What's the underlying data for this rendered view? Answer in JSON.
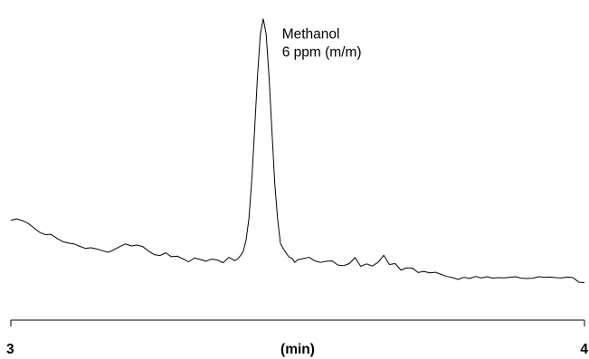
{
  "chart_data": {
    "type": "line",
    "title": "",
    "xlabel": "(min)",
    "ylabel": "",
    "xlim": [
      3,
      4
    ],
    "ylim": [
      0,
      100
    ],
    "x_ticks": [
      {
        "value": 3,
        "label": "3"
      },
      {
        "value": 4,
        "label": "4"
      }
    ],
    "grid": false,
    "legend": "none",
    "y_axis_visible": false,
    "annotation": {
      "lines": [
        "Methanol",
        "6 ppm (m/m)"
      ],
      "anchor_x": 3.438,
      "anchor_y": 95
    },
    "series": [
      {
        "color": "#000000",
        "x": [
          3.0,
          3.01,
          3.02,
          3.03,
          3.04,
          3.05,
          3.06,
          3.07,
          3.08,
          3.09,
          3.1,
          3.11,
          3.12,
          3.13,
          3.14,
          3.15,
          3.16,
          3.17,
          3.18,
          3.19,
          3.2,
          3.21,
          3.22,
          3.23,
          3.24,
          3.25,
          3.26,
          3.27,
          3.28,
          3.29,
          3.3,
          3.31,
          3.32,
          3.33,
          3.34,
          3.35,
          3.36,
          3.37,
          3.38,
          3.39,
          3.395,
          3.4,
          3.405,
          3.41,
          3.415,
          3.42,
          3.425,
          3.43,
          3.435,
          3.44,
          3.445,
          3.45,
          3.455,
          3.46,
          3.465,
          3.47,
          3.475,
          3.48,
          3.485,
          3.49,
          3.495,
          3.5,
          3.51,
          3.52,
          3.53,
          3.54,
          3.55,
          3.56,
          3.57,
          3.58,
          3.59,
          3.6,
          3.61,
          3.62,
          3.63,
          3.64,
          3.65,
          3.66,
          3.67,
          3.68,
          3.69,
          3.7,
          3.71,
          3.72,
          3.73,
          3.74,
          3.75,
          3.76,
          3.77,
          3.78,
          3.79,
          3.8,
          3.81,
          3.82,
          3.83,
          3.84,
          3.85,
          3.86,
          3.87,
          3.88,
          3.89,
          3.9,
          3.91,
          3.92,
          3.93,
          3.94,
          3.95,
          3.96,
          3.97,
          3.98,
          3.99,
          4.0
        ],
        "y": [
          29.5,
          30.0,
          29.4,
          28.5,
          27.0,
          25.5,
          24.7,
          24.8,
          23.5,
          22.4,
          21.9,
          21.6,
          20.8,
          20.1,
          20.3,
          19.9,
          19.3,
          18.8,
          19.7,
          20.7,
          21.6,
          20.9,
          21.2,
          20.7,
          19.2,
          18.0,
          17.7,
          18.6,
          17.3,
          17.5,
          16.6,
          15.6,
          16.9,
          16.4,
          15.8,
          16.5,
          16.2,
          15.3,
          17.1,
          16.0,
          16.5,
          17.6,
          19.0,
          22.8,
          30.0,
          43.0,
          60.0,
          78.0,
          92.0,
          97.0,
          92.0,
          78.0,
          60.0,
          42.0,
          30.0,
          21.7,
          20.0,
          18.5,
          17.2,
          16.8,
          15.4,
          16.3,
          16.7,
          17.1,
          15.9,
          15.4,
          15.8,
          15.9,
          14.5,
          14.3,
          15.0,
          17.0,
          14.1,
          14.9,
          14.2,
          15.4,
          17.8,
          14.7,
          15.0,
          12.8,
          13.6,
          13.5,
          12.0,
          12.4,
          11.9,
          12.1,
          11.4,
          10.7,
          10.3,
          9.7,
          10.4,
          10.0,
          10.7,
          10.2,
          10.6,
          10.1,
          10.3,
          10.2,
          10.4,
          10.6,
          10.1,
          10.0,
          10.1,
          10.6,
          10.4,
          10.5,
          10.3,
          10.2,
          10.5,
          10.3,
          8.8,
          8.6
        ]
      }
    ]
  }
}
